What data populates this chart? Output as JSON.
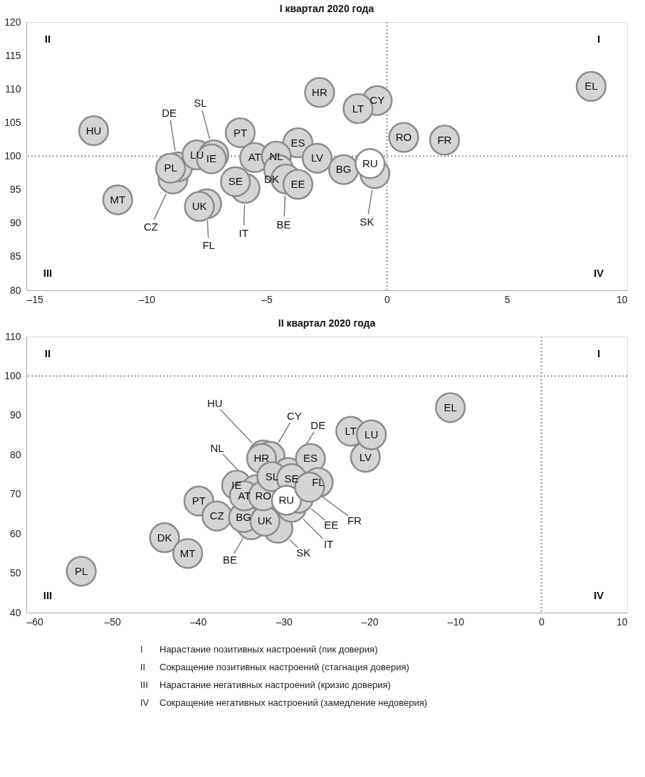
{
  "chart_data": [
    {
      "type": "scatter",
      "title": "I квартал 2020 года",
      "marker": "circle",
      "grid": false,
      "xlim": [
        -15,
        10
      ],
      "xticks": [
        {
          "value": -15,
          "label": "–15"
        },
        {
          "value": -10,
          "label": "–10"
        },
        {
          "value": -5,
          "label": "–5"
        },
        0,
        5,
        10
      ],
      "ylim": [
        80,
        120
      ],
      "yticks": [
        80,
        85,
        90,
        95,
        100,
        105,
        110,
        115,
        120
      ],
      "ref_lines": [
        {
          "axis": "x",
          "value": 0,
          "color": "#a6a6a6",
          "line_style": "dotted"
        },
        {
          "axis": "y",
          "value": 100,
          "color": "#a6a6a6",
          "line_style": "dotted"
        }
      ],
      "annotations": [
        "I",
        "II",
        "III",
        "IV"
      ],
      "series": [
        {
          "x": [
            -12.2,
            -11.2,
            -8.9,
            -8.7,
            -9.0,
            -7.9,
            -7.2,
            -7.3,
            -7.5,
            -7.8,
            -6.1,
            -5.9,
            -6.3,
            -5.5,
            -3.7,
            -4.6,
            -4.5,
            -4.2,
            -3.7,
            -2.9,
            -2.8,
            -1.8,
            -0.5,
            -0.7,
            -0.4,
            -1.2,
            0.7,
            2.4,
            8.5
          ],
          "values": [
            103.8,
            93.5,
            96.6,
            98.4,
            98.2,
            100.2,
            100.2,
            99.6,
            92.9,
            92.5,
            103.5,
            95.2,
            96.2,
            99.8,
            102.0,
            100.0,
            98.0,
            96.6,
            95.8,
            99.7,
            109.5,
            98.0,
            97.4,
            98.9,
            108.3,
            107.1,
            102.8,
            102.4,
            110.4
          ],
          "value_labels": [
            "HU",
            "MT",
            "CZ",
            "DE",
            "PL",
            "LU",
            "SL",
            "IE",
            "FL",
            "UK",
            "PT",
            "IT",
            "SE",
            "AT",
            "ES",
            "NL",
            "DK",
            "BE",
            "EE",
            "LV",
            "HR",
            "BG",
            "SK",
            "RU",
            "CY",
            "LT",
            "RO",
            "FR",
            "EL"
          ],
          "colors": [
            "#d4d4d6",
            "#d4d4d6",
            "#d4d4d6",
            "#d4d4d6",
            "#d4d4d6",
            "#d4d4d6",
            "#d4d4d6",
            "#d4d4d6",
            "#d4d4d6",
            "#d4d4d6",
            "#d4d4d6",
            "#d4d4d6",
            "#d4d4d6",
            "#d4d4d6",
            "#d4d4d6",
            "#d4d4d6",
            "#d4d4d6",
            "#d4d4d6",
            "#d4d4d6",
            "#d4d4d6",
            "#d4d4d6",
            "#d4d4d6",
            "#d4d4d6",
            "#ffffff",
            "#d4d4d6",
            "#d4d4d6",
            "#d4d4d6",
            "#d4d4d6",
            "#d4d4d6"
          ]
        }
      ]
    },
    {
      "type": "scatter",
      "title": "II квартал 2020 года",
      "marker": "circle",
      "grid": false,
      "xlim": [
        -60,
        10
      ],
      "xticks": [
        {
          "value": -60,
          "label": "–60"
        },
        {
          "value": -50,
          "label": "–50"
        },
        {
          "value": -40,
          "label": "–40"
        },
        {
          "value": -30,
          "label": "–30"
        },
        {
          "value": -20,
          "label": "–20"
        },
        {
          "value": -10,
          "label": "–10"
        },
        0,
        10
      ],
      "ylim": [
        40,
        110
      ],
      "yticks": [
        40,
        50,
        60,
        70,
        80,
        90,
        100,
        110
      ],
      "ref_lines": [
        {
          "axis": "x",
          "value": 0,
          "color": "#a6a6a6",
          "line_style": "dotted"
        },
        {
          "axis": "y",
          "value": 100,
          "color": "#a6a6a6",
          "line_style": "dotted"
        }
      ],
      "annotations": [
        "I",
        "II",
        "III",
        "IV"
      ],
      "series": [
        {
          "x": [
            -53.6,
            -43.9,
            -41.2,
            -39.9,
            -37.8,
            -32.4,
            -31.6,
            -32.6,
            -35.5,
            -33.2,
            -33.8,
            -34.7,
            -30.7,
            -32.2,
            -34.6,
            -29.5,
            -32.4,
            -26.9,
            -29.1,
            -28.3,
            -26.0,
            -31.4,
            -29.1,
            -29.7,
            -27.0,
            -20.5,
            -22.2,
            -19.8,
            -10.6
          ],
          "values": [
            50.5,
            59.0,
            55.0,
            68.3,
            64.5,
            80.0,
            79.6,
            79.1,
            72.3,
            71.2,
            62.3,
            64.1,
            61.4,
            63.2,
            69.6,
            75.5,
            69.6,
            79.1,
            66.7,
            69.0,
            73.0,
            74.5,
            74.0,
            68.5,
            71.8,
            79.4,
            86.0,
            85.1,
            92.0
          ],
          "value_labels": [
            "PL",
            "DK",
            "MT",
            "PT",
            "CZ",
            "HU",
            "CY",
            "HR",
            "IE",
            "NL",
            "BE",
            "BG",
            "SK",
            "UK",
            "AT",
            "DE",
            "RO",
            "ES",
            "IT",
            "EE",
            "FL",
            "SL",
            "SE",
            "RU",
            "FR",
            "LV",
            "LT",
            "LU",
            "EL"
          ],
          "colors": [
            "#d4d4d6",
            "#d4d4d6",
            "#d4d4d6",
            "#d4d4d6",
            "#d4d4d6",
            "#d4d4d6",
            "#d4d4d6",
            "#d4d4d6",
            "#d4d4d6",
            "#d4d4d6",
            "#d4d4d6",
            "#d4d4d6",
            "#d4d4d6",
            "#d4d4d6",
            "#d4d4d6",
            "#d4d4d6",
            "#d4d4d6",
            "#d4d4d6",
            "#d4d4d6",
            "#d4d4d6",
            "#d4d4d6",
            "#d4d4d6",
            "#d4d4d6",
            "#ffffff",
            "#d4d4d6",
            "#d4d4d6",
            "#d4d4d6",
            "#d4d4d6",
            "#d4d4d6"
          ]
        }
      ]
    },
    {
      "type": "other",
      "annotations": [
        "I Нарастание позитивных настроений (пик доверия)",
        "II Сокращение позитивных настроений (стагнация доверия)",
        "III Нарастание негативных настроений (кризис доверия)",
        "IV Сокращение негативных настроений (замедление недоверия)"
      ]
    }
  ]
}
